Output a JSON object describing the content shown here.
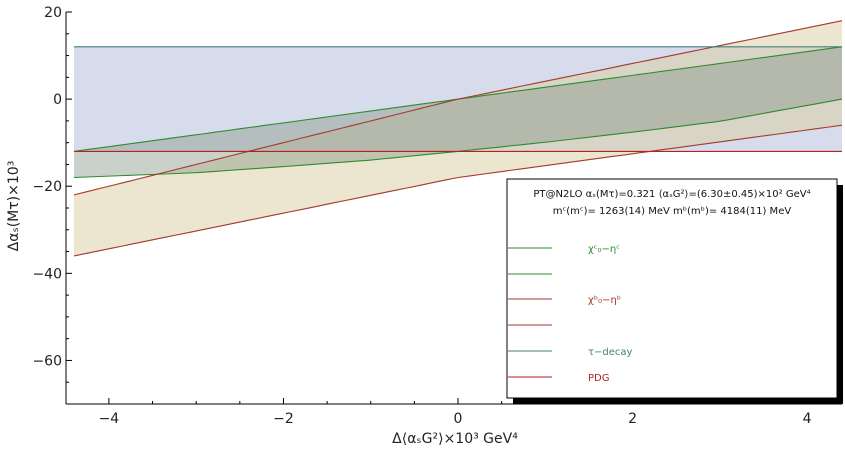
{
  "chart_data": {
    "type": "line",
    "xlabel": "Δ⟨αₛG²⟩×10³ GeV⁴",
    "ylabel": "Δαₛ(Mτ)×10³",
    "xlim": [
      -4.4,
      4.4
    ],
    "ylim": [
      -70,
      20
    ],
    "x_ticks": [
      -4,
      -2,
      0,
      2,
      4
    ],
    "y_ticks": [
      20,
      0,
      -20,
      -40,
      -60
    ],
    "grid": false,
    "legend_position": "bottom-right",
    "legend": {
      "header_line1": "PT@N2LO αₛ(Mτ)=0.321  ⟨αₛG²⟩=(6.30±0.45)×10² GeV⁴",
      "header_line2": "mᶜ(mᶜ)= 1263(14) MeV  mᵇ(mᵇ)= 4184(11) MeV",
      "entries": [
        {
          "label": "χᶜ₀−ηᶜ",
          "color": "#2e8b2e"
        },
        {
          "label": "",
          "color": "#2e8b2e"
        },
        {
          "label": "χᵇ₀−ηᵇ",
          "color": "#a33a2a"
        },
        {
          "label": "",
          "color": "#a33a2a"
        },
        {
          "label": "τ−decay",
          "color": "#3f7f7f"
        },
        {
          "label": "PDG",
          "color": "#b22222"
        }
      ]
    },
    "series": [
      {
        "name": "χc0−ηc",
        "band": "upper",
        "color": "#2e8b2e",
        "x": [
          -4.4,
          0,
          4.4
        ],
        "y": [
          -12,
          0,
          12
        ]
      },
      {
        "name": "χc0−ηc",
        "band": "lower",
        "color": "#2e8b2e",
        "x": [
          -4.4,
          -3,
          -2,
          -1,
          0,
          1,
          2,
          3,
          4.4
        ],
        "y": [
          -18,
          -16.9,
          -15.5,
          -14.0,
          -12,
          -9.9,
          -7.6,
          -5.1,
          0
        ]
      },
      {
        "name": "χb0−ηb",
        "band": "upper",
        "color": "#a33a2a",
        "x": [
          -4.4,
          0,
          4.4
        ],
        "y": [
          -22,
          0,
          18
        ]
      },
      {
        "name": "χb0−ηb",
        "band": "lower",
        "color": "#a33a2a",
        "x": [
          -4.4,
          0,
          4.4
        ],
        "y": [
          -36,
          -18,
          -6
        ]
      },
      {
        "name": "τ−decay",
        "band": "upper",
        "color": "#3f7f7f",
        "x": [
          -4.4,
          4.4
        ],
        "y": [
          12,
          12
        ]
      },
      {
        "name": "PDG",
        "band": "lower",
        "color": "#b22222",
        "x": [
          -4.4,
          4.4
        ],
        "y": [
          -12,
          -12
        ]
      }
    ],
    "fills": [
      {
        "between": [
          "τ−decay",
          "PDG"
        ],
        "color": "#c9d0e6",
        "opacity": 0.75
      },
      {
        "between": [
          "χb0−ηb upper",
          "χb0−ηb lower"
        ],
        "color": "#d9cba0",
        "opacity": 0.5
      },
      {
        "between": [
          "χc0−ηc upper",
          "χc0−ηc lower"
        ],
        "color": "#8a9a8a",
        "opacity": 0.45
      }
    ]
  }
}
